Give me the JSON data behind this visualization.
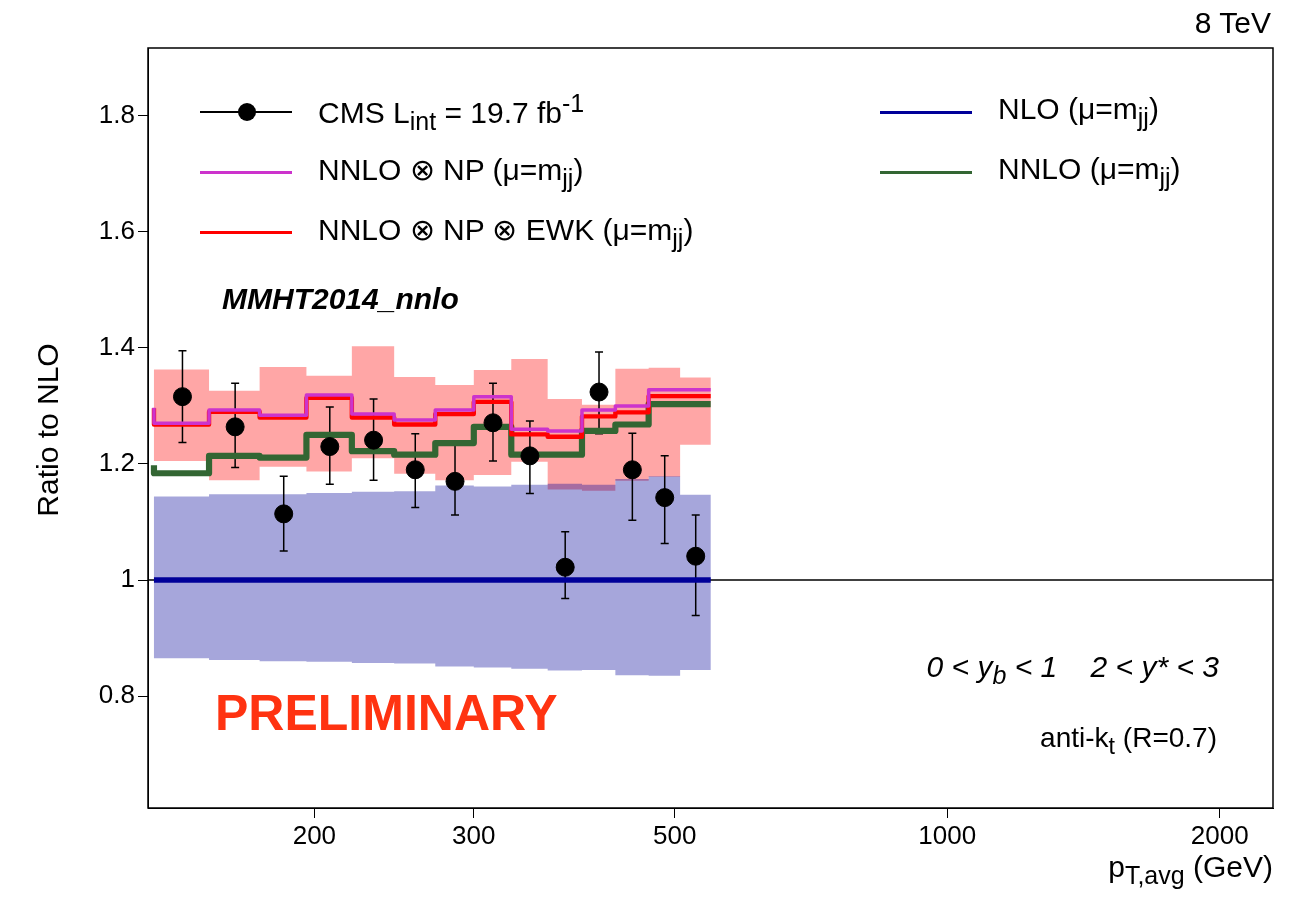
{
  "chart_data": {
    "type": "step",
    "xlabel": "p$_{T,avg}$ (GeV)",
    "ylabel": "Ratio to NLO",
    "log": "x",
    "xlim": [
      131,
      2290
    ],
    "xticks": [
      200,
      300,
      500,
      1000,
      2000
    ],
    "ylim": [
      0.607,
      1.917
    ],
    "yticks": [
      0.8,
      1,
      1.2,
      1.4,
      1.6,
      1.8
    ],
    "legend": "top",
    "line_style": "solid",
    "ref_lines": [
      {
        "axis": "y",
        "value": 1,
        "color": "#000000"
      }
    ],
    "annotations": [
      "8 TeV",
      "MMHT2014_nnlo",
      "PRELIMINARY",
      "0 < y$_{b}$ < 1    2 < y* < 3",
      "anti-k$_{t}$ (R=0.7)"
    ],
    "series": [
      {
        "name": "CMS L$_{int}$ = 19.7 fb$^{-1}$",
        "type": "scatter",
        "marker": "circle",
        "color": "#000000",
        "x": [
          143,
          163.5,
          185,
          208,
          232.5,
          258.5,
          286,
          315,
          346,
          378.5,
          412.5,
          449,
          487.5,
          527.5
        ],
        "values": [
          1.316,
          1.264,
          1.114,
          1.23,
          1.241,
          1.19,
          1.17,
          1.271,
          1.214,
          1.022,
          1.324,
          1.19,
          1.142,
          1.041
        ],
        "errors": [
          [
            1.237,
            1.395
          ],
          [
            1.194,
            1.339
          ],
          [
            1.05,
            1.179
          ],
          [
            1.165,
            1.298
          ],
          [
            1.172,
            1.312
          ],
          [
            1.125,
            1.252
          ],
          [
            1.112,
            1.234
          ],
          [
            1.205,
            1.339
          ],
          [
            1.149,
            1.274
          ],
          [
            0.968,
            1.083
          ],
          [
            1.252,
            1.393
          ],
          [
            1.103,
            1.253
          ],
          [
            1.063,
            1.214
          ],
          [
            0.939,
            1.112
          ]
        ]
      },
      {
        "name": "NNLO ⊗ NP (μ=m$_{jj}$)",
        "color": "#cc33cc",
        "x": [
          133,
          153,
          174,
          196,
          220,
          245,
          272,
          300,
          330,
          362,
          395,
          430,
          468,
          507,
          548
        ],
        "values": [
          1.297,
          1.27,
          1.293,
          1.284,
          1.319,
          1.286,
          1.276,
          1.293,
          1.316,
          1.26,
          1.257,
          1.293,
          1.3,
          1.328,
          1.328
        ]
      },
      {
        "name": "NNLO ⊗ NP ⊗ EWK (μ=m$_{jj}$)",
        "color": "#ff0000",
        "x": [
          133,
          153,
          174,
          196,
          220,
          245,
          272,
          300,
          330,
          362,
          395,
          430,
          468,
          507,
          548
        ],
        "values": [
          1.296,
          1.268,
          1.29,
          1.28,
          1.314,
          1.28,
          1.268,
          1.286,
          1.307,
          1.251,
          1.247,
          1.282,
          1.289,
          1.317,
          1.317
        ],
        "lower": [
          1.205,
          1.172,
          1.195,
          1.187,
          1.21,
          1.183,
          1.172,
          1.181,
          1.204,
          1.156,
          1.154,
          1.171,
          1.178,
          1.233,
          1.233
        ],
        "upper": [
          1.363,
          1.326,
          1.367,
          1.352,
          1.403,
          1.35,
          1.336,
          1.362,
          1.381,
          1.312,
          1.302,
          1.364,
          1.366,
          1.349,
          1.349
        ]
      },
      {
        "name": "NLO (μ=m$_{jj}$)",
        "color": "#000099",
        "x": [
          133,
          153,
          174,
          196,
          220,
          245,
          272,
          300,
          330,
          362,
          395,
          430,
          468,
          507,
          548
        ],
        "values": [
          1,
          1,
          1,
          1,
          1,
          1,
          1,
          1,
          1,
          1,
          1,
          1,
          1,
          1,
          1
        ],
        "lower": [
          0.865,
          0.862,
          0.86,
          0.859,
          0.857,
          0.856,
          0.851,
          0.849,
          0.847,
          0.844,
          0.845,
          0.836,
          0.835,
          0.845,
          0.845
        ],
        "upper": [
          1.144,
          1.148,
          1.148,
          1.15,
          1.152,
          1.153,
          1.163,
          1.161,
          1.164,
          1.166,
          1.164,
          1.174,
          1.179,
          1.147,
          1.147
        ]
      },
      {
        "name": "NNLO (μ=m$_{jj}$)",
        "color": "#336633",
        "x": [
          133,
          153,
          174,
          196,
          220,
          245,
          272,
          300,
          330,
          362,
          395,
          430,
          468,
          507,
          548
        ],
        "values": [
          1.198,
          1.184,
          1.214,
          1.211,
          1.25,
          1.222,
          1.216,
          1.236,
          1.264,
          1.216,
          1.216,
          1.257,
          1.268,
          1.303,
          1.303
        ]
      }
    ]
  }
}
